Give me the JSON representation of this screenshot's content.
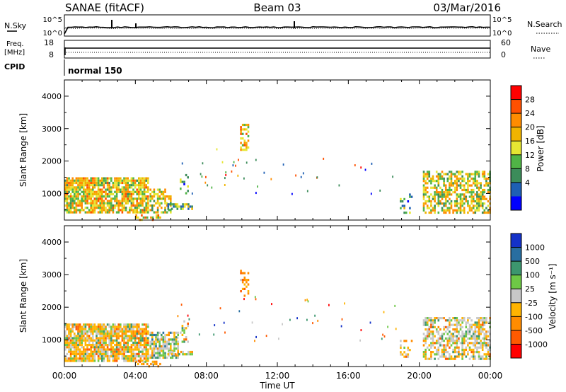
{
  "header": {
    "station": "SANAE (fitACF)",
    "beam": "Beam 03",
    "date": "03/Mar/2016"
  },
  "panels": {
    "nsky": {
      "left_label": "N.Sky",
      "right_label": "N.Search",
      "tick_top": "10^5",
      "tick_bottom": "10^0"
    },
    "freq": {
      "left_label_1": "Freq.",
      "left_label_2": "[MHz]",
      "right_label": "Nave",
      "left_ticks": [
        "18",
        "8"
      ],
      "right_ticks": [
        "60",
        "0"
      ]
    },
    "cpid": {
      "label": "CPID",
      "mode": "normal 150"
    }
  },
  "chart_data": [
    {
      "type": "heatmap",
      "name": "power",
      "xlabel": "",
      "ylabel": "Slant Range [km]",
      "xlim": [
        0,
        24
      ],
      "ylim": [
        180,
        4500
      ],
      "yticks": [
        "4000",
        "3000",
        "2000",
        "1000"
      ],
      "colorbar": {
        "label": "Power [dB]",
        "ticks": [
          "28",
          "24",
          "20",
          "16",
          "12",
          "8",
          "4"
        ],
        "colors": [
          "#0000ff",
          "#1e5fb4",
          "#3c8c5a",
          "#50b446",
          "#e6e632",
          "#f0b400",
          "#ff8c00",
          "#ff5000",
          "#ff0000"
        ]
      },
      "regions": [
        {
          "t0": 0.0,
          "t1": 4.8,
          "r0": 350,
          "r1": 1500,
          "density": 0.85,
          "mean": 18
        },
        {
          "t0": 4.8,
          "t1": 6.0,
          "r0": 400,
          "r1": 1150,
          "density": 0.6,
          "mean": 17
        },
        {
          "t0": 5.8,
          "t1": 7.3,
          "r0": 500,
          "r1": 700,
          "density": 0.6,
          "mean": 12
        },
        {
          "t0": 6.5,
          "t1": 7.0,
          "r0": 900,
          "r1": 1600,
          "density": 0.25,
          "mean": 10
        },
        {
          "t0": 4.0,
          "t1": 5.5,
          "r0": 180,
          "r1": 360,
          "density": 0.4,
          "mean": 20
        },
        {
          "t0": 9.9,
          "t1": 10.4,
          "r0": 2300,
          "r1": 3150,
          "density": 0.45,
          "mean": 20
        },
        {
          "t0": 18.9,
          "t1": 19.6,
          "r0": 400,
          "r1": 1000,
          "density": 0.35,
          "mean": 10
        },
        {
          "t0": 20.2,
          "t1": 24.0,
          "r0": 350,
          "r1": 1700,
          "density": 0.6,
          "mean": 17
        }
      ]
    },
    {
      "type": "heatmap",
      "name": "velocity",
      "xlabel": "Time UT",
      "ylabel": "Slant Range [km]",
      "xlim": [
        0,
        24
      ],
      "ylim": [
        180,
        4500
      ],
      "xticks": [
        "00:00",
        "04:00",
        "08:00",
        "12:00",
        "16:00",
        "20:00",
        "00:00"
      ],
      "yticks": [
        "4000",
        "3000",
        "2000",
        "1000"
      ],
      "colorbar": {
        "label": "Velocity [m s⁻¹]",
        "ticks": [
          "1000",
          "500",
          "100",
          "25",
          "-25",
          "-100",
          "-500",
          "-1000"
        ],
        "colors": [
          "#1432c8",
          "#286ea0",
          "#3c966e",
          "#6ec846",
          "#c8c8c8",
          "#ffb400",
          "#ff8c00",
          "#ff5a00",
          "#ff0000"
        ]
      },
      "regions": [
        {
          "t0": 0.0,
          "t1": 4.8,
          "r0": 350,
          "r1": 1500,
          "density": 0.85,
          "mean": -150
        },
        {
          "t0": 4.8,
          "t1": 6.5,
          "r0": 450,
          "r1": 1250,
          "density": 0.7,
          "mean": 100
        },
        {
          "t0": 5.8,
          "t1": 7.3,
          "r0": 520,
          "r1": 660,
          "density": 0.6,
          "mean": -40
        },
        {
          "t0": 6.5,
          "t1": 7.0,
          "r0": 900,
          "r1": 1600,
          "density": 0.3,
          "mean": -100
        },
        {
          "t0": 4.0,
          "t1": 5.5,
          "r0": 180,
          "r1": 360,
          "density": 0.4,
          "mean": -300
        },
        {
          "t0": 9.9,
          "t1": 10.4,
          "r0": 2300,
          "r1": 3150,
          "density": 0.45,
          "mean": -500
        },
        {
          "t0": 18.9,
          "t1": 19.6,
          "r0": 400,
          "r1": 1000,
          "density": 0.3,
          "mean": -100
        },
        {
          "t0": 20.2,
          "t1": 24.0,
          "r0": 350,
          "r1": 1700,
          "density": 0.6,
          "mean": -50
        }
      ]
    }
  ]
}
